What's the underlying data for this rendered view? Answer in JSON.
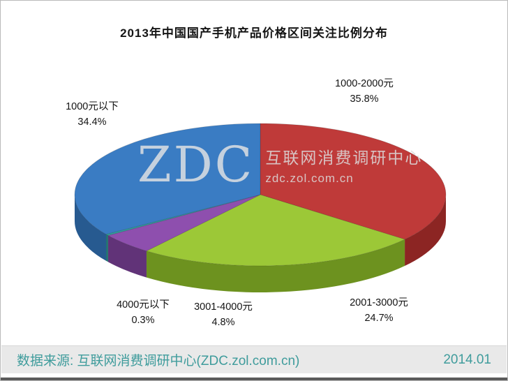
{
  "title": "2013年中国国产手机产品价格区间关注比例分布",
  "watermark": {
    "logo": "ZDC",
    "name": "互联网消费调研中心",
    "url": "zdc.zol.com.cn"
  },
  "footer": {
    "source": "数据来源: 互联网消费调研中心(ZDC.zol.com.cn)",
    "date": "2014.01"
  },
  "chart_data": {
    "type": "pie",
    "style": "3d",
    "title": "2013年中国国产手机产品价格区间关注比例分布",
    "unit": "%",
    "start_angle_deg": -90,
    "direction": "clockwise",
    "legend_position": "none",
    "slices": [
      {
        "label": "1000-2000元",
        "value": 35.8,
        "pct_label": "35.8%",
        "color": "#bf3a39",
        "side_color": "#8c2523"
      },
      {
        "label": "2001-3000元",
        "value": 24.7,
        "pct_label": "24.7%",
        "color": "#9cc837",
        "side_color": "#6d921f"
      },
      {
        "label": "3001-4000元",
        "value": 4.8,
        "pct_label": "4.8%",
        "color": "#8e4fae",
        "side_color": "#613378"
      },
      {
        "label": "4000元以下",
        "value": 0.3,
        "pct_label": "0.3%",
        "color": "#2fa3a0",
        "side_color": "#1d6f6d"
      },
      {
        "label": "1000元以下",
        "value": 34.4,
        "pct_label": "34.4%",
        "color": "#3a7cc3",
        "side_color": "#275a90"
      }
    ]
  }
}
